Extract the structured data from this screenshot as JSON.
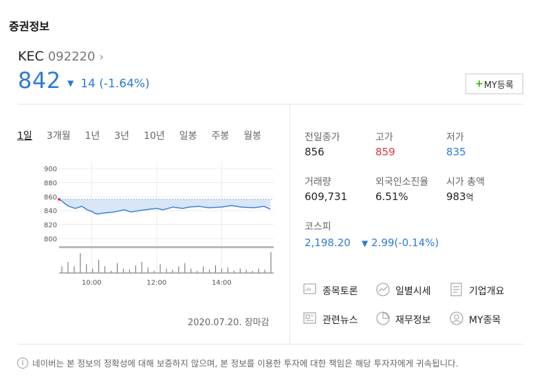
{
  "section_title": "증권정보",
  "stock": {
    "name": "KEC",
    "code": "092220",
    "price": "842",
    "change": "14",
    "change_pct": "(-1.64%)",
    "my_button": "MY등록"
  },
  "period_tabs": [
    "1일",
    "3개월",
    "1년",
    "3년",
    "10년",
    "일봉",
    "주봉",
    "월봉"
  ],
  "active_tab": "1일",
  "chart_data": {
    "type": "line",
    "y_ticks": [
      "900",
      "880",
      "860",
      "840",
      "820",
      "800"
    ],
    "x_ticks": [
      "10:00",
      "12:00",
      "14:00"
    ],
    "ylim": [
      790,
      910
    ],
    "xlim": [
      9.0,
      15.6
    ],
    "prev_close": 856,
    "x": [
      9.0,
      9.1,
      9.2,
      9.3,
      9.5,
      9.7,
      9.9,
      10.0,
      10.1,
      10.2,
      10.3,
      10.5,
      10.7,
      11.0,
      11.2,
      11.5,
      11.8,
      12.0,
      12.2,
      12.5,
      12.8,
      13.0,
      13.3,
      13.6,
      14.0,
      14.3,
      14.6,
      15.0,
      15.3,
      15.5
    ],
    "y": [
      856,
      853,
      849,
      846,
      843,
      846,
      840,
      839,
      836,
      835,
      836,
      837,
      838,
      841,
      838,
      840,
      842,
      843,
      841,
      845,
      843,
      845,
      846,
      844,
      845,
      847,
      845,
      844,
      846,
      842
    ],
    "volume_heights": [
      0.3,
      0.5,
      0.3,
      0.9,
      0.4,
      0.2,
      0.6,
      0.3,
      0.1,
      0.45,
      0.2,
      0.15,
      0.35,
      0.5,
      0.25,
      0.1,
      0.4,
      0.2,
      0.15,
      0.3,
      0.45,
      0.2,
      0.1,
      0.3,
      0.15,
      0.35,
      0.2,
      0.25,
      0.1,
      0.2,
      0.15,
      0.1,
      0.2,
      0.15,
      0.95
    ]
  },
  "date_text": "2020.07.20. 장마감",
  "info": [
    {
      "label": "전일종가",
      "value": "856",
      "color": "#222222"
    },
    {
      "label": "고가",
      "value": "859",
      "color": "#e0333f"
    },
    {
      "label": "저가",
      "value": "835",
      "color": "#2d7bd3"
    },
    {
      "label": "거래량",
      "value": "609,731",
      "color": "#222222"
    },
    {
      "label": "외국인소진율",
      "value": "6.51%",
      "color": "#222222"
    },
    {
      "label": "시가 총액",
      "value": "983",
      "unit": "억",
      "color": "#222222"
    }
  ],
  "kospi": {
    "label": "코스피",
    "value": "2,198.20",
    "change": "2.99",
    "change_pct": "(-0.14%)"
  },
  "links": [
    {
      "label": "종목토론",
      "icon": "discussion-icon"
    },
    {
      "label": "일별시세",
      "icon": "daily-chart-icon"
    },
    {
      "label": "기업개요",
      "icon": "company-overview-icon"
    },
    {
      "label": "관련뉴스",
      "icon": "news-icon"
    },
    {
      "label": "재무정보",
      "icon": "finance-icon"
    },
    {
      "label": "MY종목",
      "icon": "user-icon"
    }
  ],
  "disclaimer": "네이버는 본 정보의 정확성에 대해 보증하지 않으며, 본 정보를 이용한 투자에 대한 책임은 해당 투자자에게 귀속됩니다."
}
